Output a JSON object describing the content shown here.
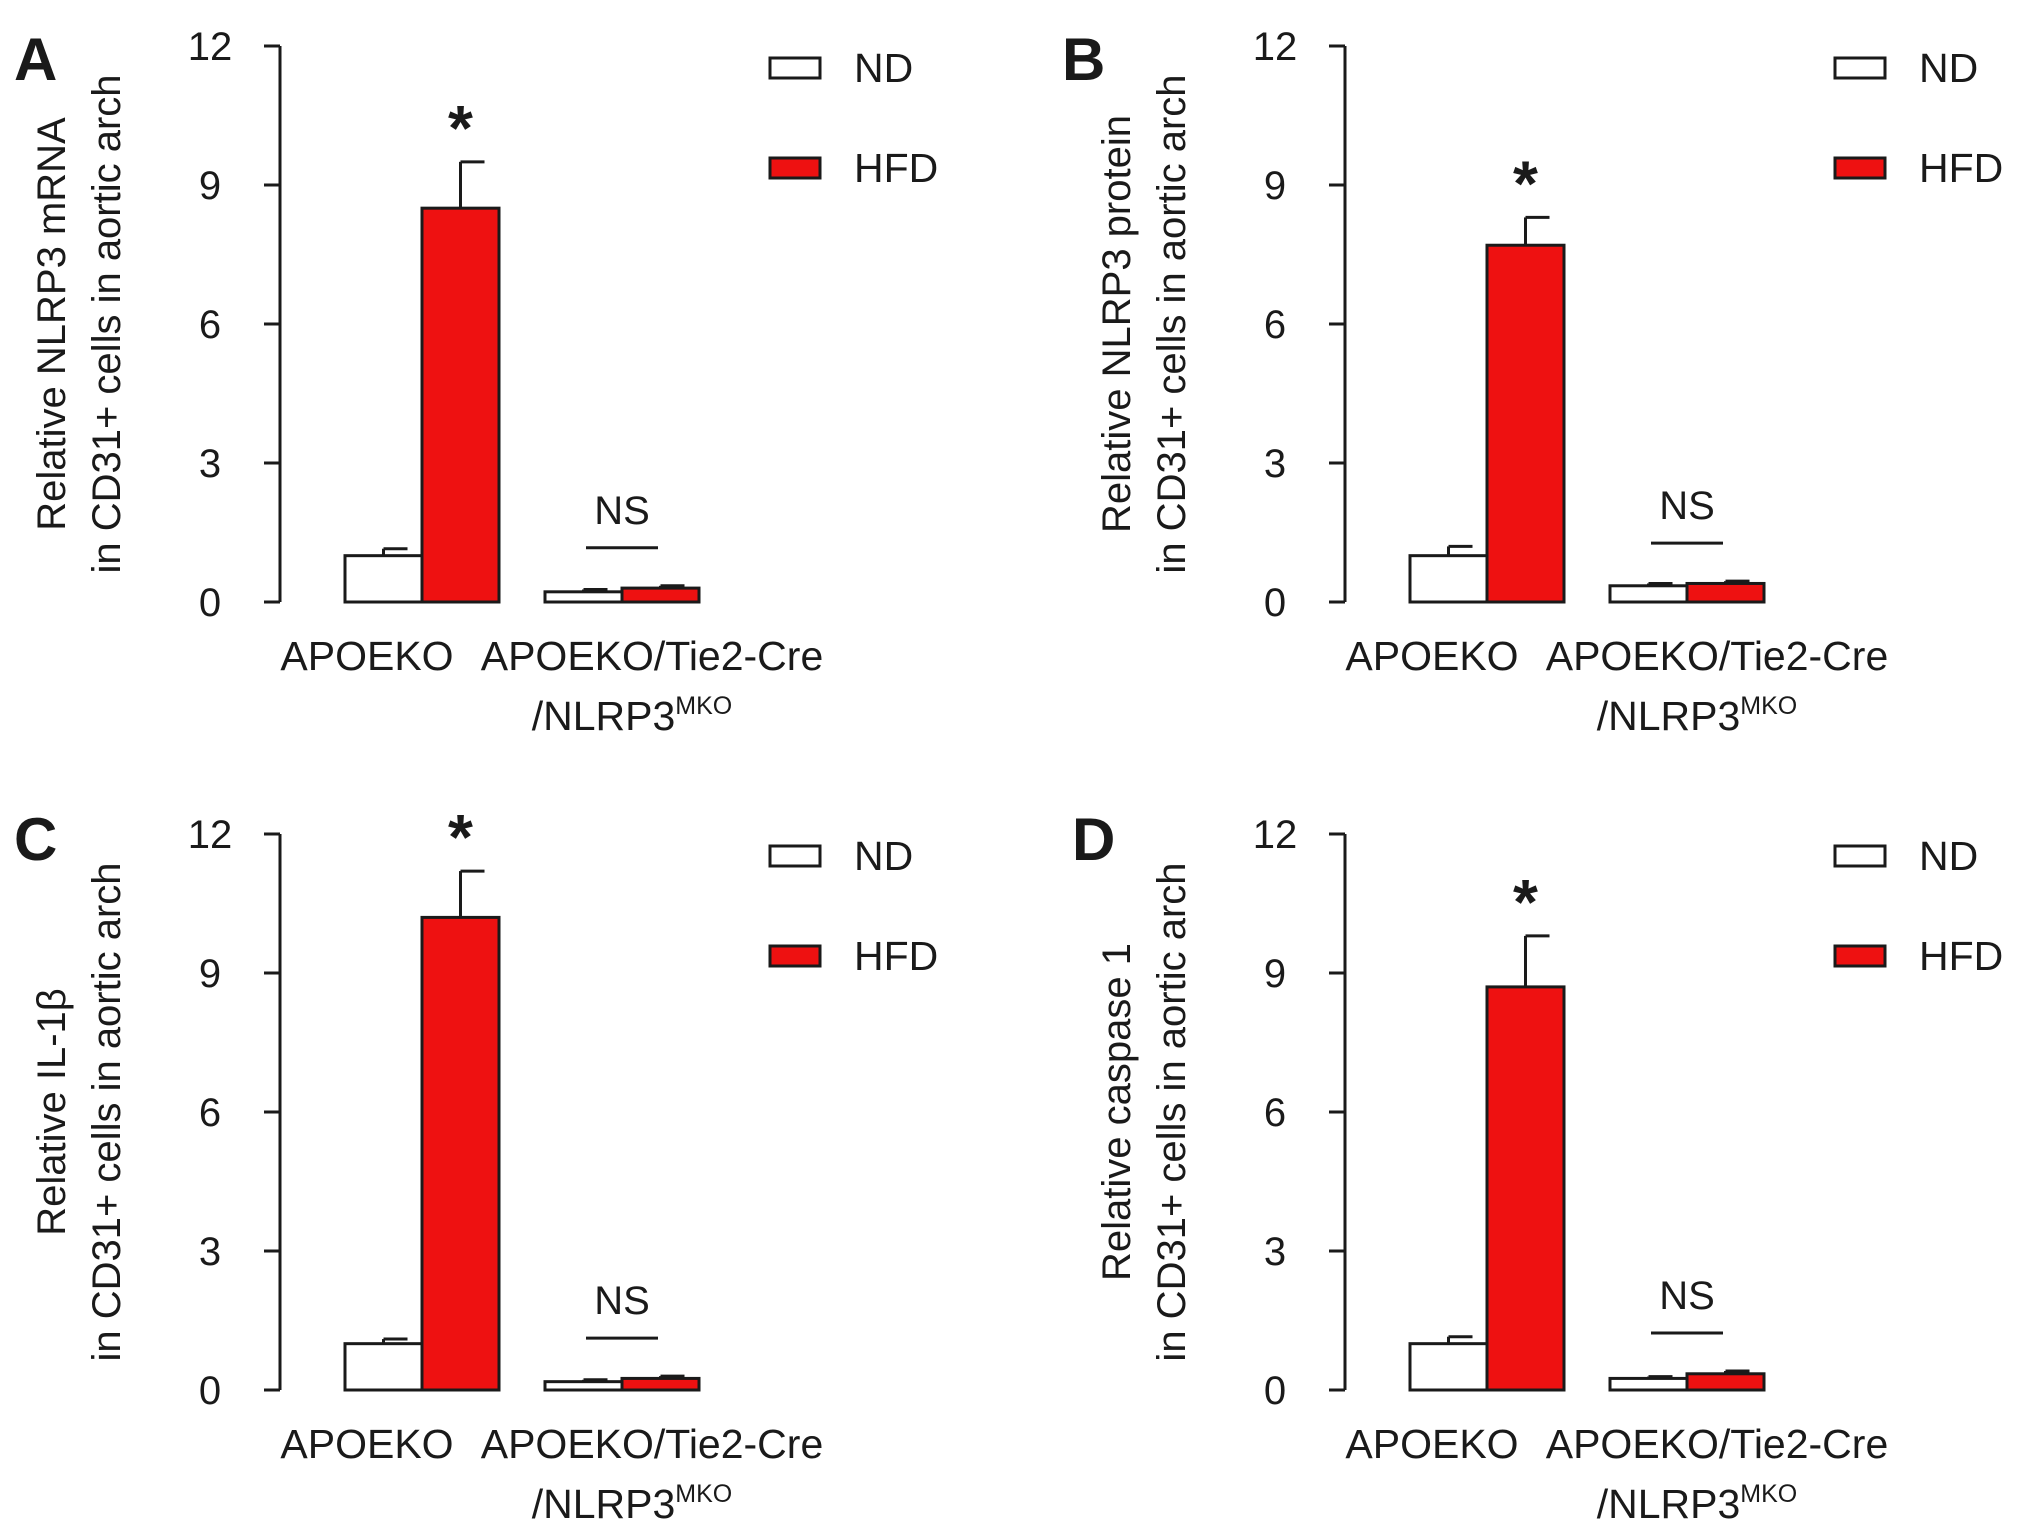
{
  "chart_data": [
    {
      "type": "bar",
      "panel": "A",
      "ylabel_lines": [
        "Relative NLRP3 mRNA",
        "in CD31+ cells in aortic arch"
      ],
      "ylim": [
        0,
        12
      ],
      "yticks": [
        "0",
        "3",
        "6",
        "9",
        "12"
      ],
      "categories": [
        "APOEKO",
        "APOEKO/Tie2-Cre"
      ],
      "category_line2": "/NLRP3",
      "category_sup": "MKO",
      "series": [
        {
          "name": "ND",
          "color": "#ffffff",
          "values": [
            1.0,
            0.22
          ],
          "errors": [
            0.15,
            0.05
          ]
        },
        {
          "name": "HFD",
          "color": "#ee1111",
          "values": [
            8.5,
            0.3
          ],
          "errors": [
            1.0,
            0.05
          ]
        }
      ],
      "annotations": [
        "*",
        "NS"
      ],
      "legend_position": "top-right"
    },
    {
      "type": "bar",
      "panel": "B",
      "ylabel_lines": [
        "Relative NLRP3 protein",
        "in CD31+ cells in aortic arch"
      ],
      "ylim": [
        0,
        12
      ],
      "yticks": [
        "0",
        "3",
        "6",
        "9",
        "12"
      ],
      "categories": [
        "APOEKO",
        "APOEKO/Tie2-Cre"
      ],
      "category_line2": "/NLRP3",
      "category_sup": "MKO",
      "series": [
        {
          "name": "ND",
          "color": "#ffffff",
          "values": [
            1.0,
            0.35
          ],
          "errors": [
            0.2,
            0.05
          ]
        },
        {
          "name": "HFD",
          "color": "#ee1111",
          "values": [
            7.7,
            0.4
          ],
          "errors": [
            0.6,
            0.05
          ]
        }
      ],
      "annotations": [
        "*",
        "NS"
      ],
      "legend_position": "top-right"
    },
    {
      "type": "bar",
      "panel": "C",
      "ylabel_lines": [
        "Relative IL-1β",
        "in CD31+ cells in aortic arch"
      ],
      "ylim": [
        0,
        12
      ],
      "yticks": [
        "0",
        "3",
        "6",
        "9",
        "12"
      ],
      "categories": [
        "APOEKO",
        "APOEKO/Tie2-Cre"
      ],
      "category_line2": "/NLRP3",
      "category_sup": "MKO",
      "series": [
        {
          "name": "ND",
          "color": "#ffffff",
          "values": [
            1.0,
            0.18
          ],
          "errors": [
            0.1,
            0.04
          ]
        },
        {
          "name": "HFD",
          "color": "#ee1111",
          "values": [
            10.2,
            0.25
          ],
          "errors": [
            1.0,
            0.05
          ]
        }
      ],
      "annotations": [
        "*",
        "NS"
      ],
      "legend_position": "top-right"
    },
    {
      "type": "bar",
      "panel": "D",
      "ylabel_lines": [
        "Relative caspase 1",
        "in CD31+ cells in aortic arch"
      ],
      "ylim": [
        0,
        12
      ],
      "yticks": [
        "0",
        "3",
        "6",
        "9",
        "12"
      ],
      "categories": [
        "APOEKO",
        "APOEKO/Tie2-Cre"
      ],
      "category_line2": "/NLRP3",
      "category_sup": "MKO",
      "series": [
        {
          "name": "ND",
          "color": "#ffffff",
          "values": [
            1.0,
            0.25
          ],
          "errors": [
            0.15,
            0.04
          ]
        },
        {
          "name": "HFD",
          "color": "#ee1111",
          "values": [
            8.7,
            0.35
          ],
          "errors": [
            1.1,
            0.06
          ]
        }
      ],
      "annotations": [
        "*",
        "NS"
      ],
      "legend_position": "top-right"
    }
  ]
}
